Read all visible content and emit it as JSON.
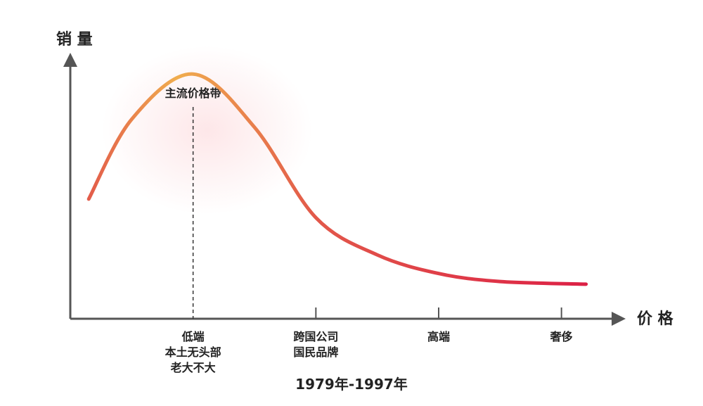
{
  "chart_data": {
    "type": "line",
    "title": "",
    "xlabel": "价 格",
    "ylabel": "销 量",
    "grid": false,
    "x_categories": [
      {
        "name": "low-end",
        "position": 1,
        "lines": [
          "低端",
          "本土无头部",
          "老大不大"
        ]
      },
      {
        "name": "multinational",
        "position": 2,
        "lines": [
          "跨国公司",
          "国民品牌"
        ]
      },
      {
        "name": "high-end",
        "position": 3,
        "lines": [
          "高端"
        ]
      },
      {
        "name": "luxury",
        "position": 4,
        "lines": [
          "奢侈"
        ]
      }
    ],
    "xlim": [
      0,
      4.5
    ],
    "ylim": [
      0,
      1
    ],
    "series": [
      {
        "name": "",
        "x": [
          0.15,
          0.5,
          1.0,
          1.5,
          2.0,
          2.5,
          3.0,
          3.5,
          4.2
        ],
        "y": [
          0.45,
          0.75,
          0.92,
          0.72,
          0.38,
          0.24,
          0.17,
          0.14,
          0.13
        ]
      }
    ],
    "annotations": [
      {
        "name": "mainstream-price-band",
        "label": "主流价格带",
        "x": 1.0,
        "style": "dashed-vertical"
      }
    ],
    "period_label": "1979年-1997年",
    "colors": {
      "curve_start": "#e2584a",
      "curve_peak": "#f0ad4e",
      "curve_end": "#dc1e45",
      "axis": "#555555",
      "period_label": "#d4283c",
      "peak_glow": "#fde4e6"
    }
  }
}
